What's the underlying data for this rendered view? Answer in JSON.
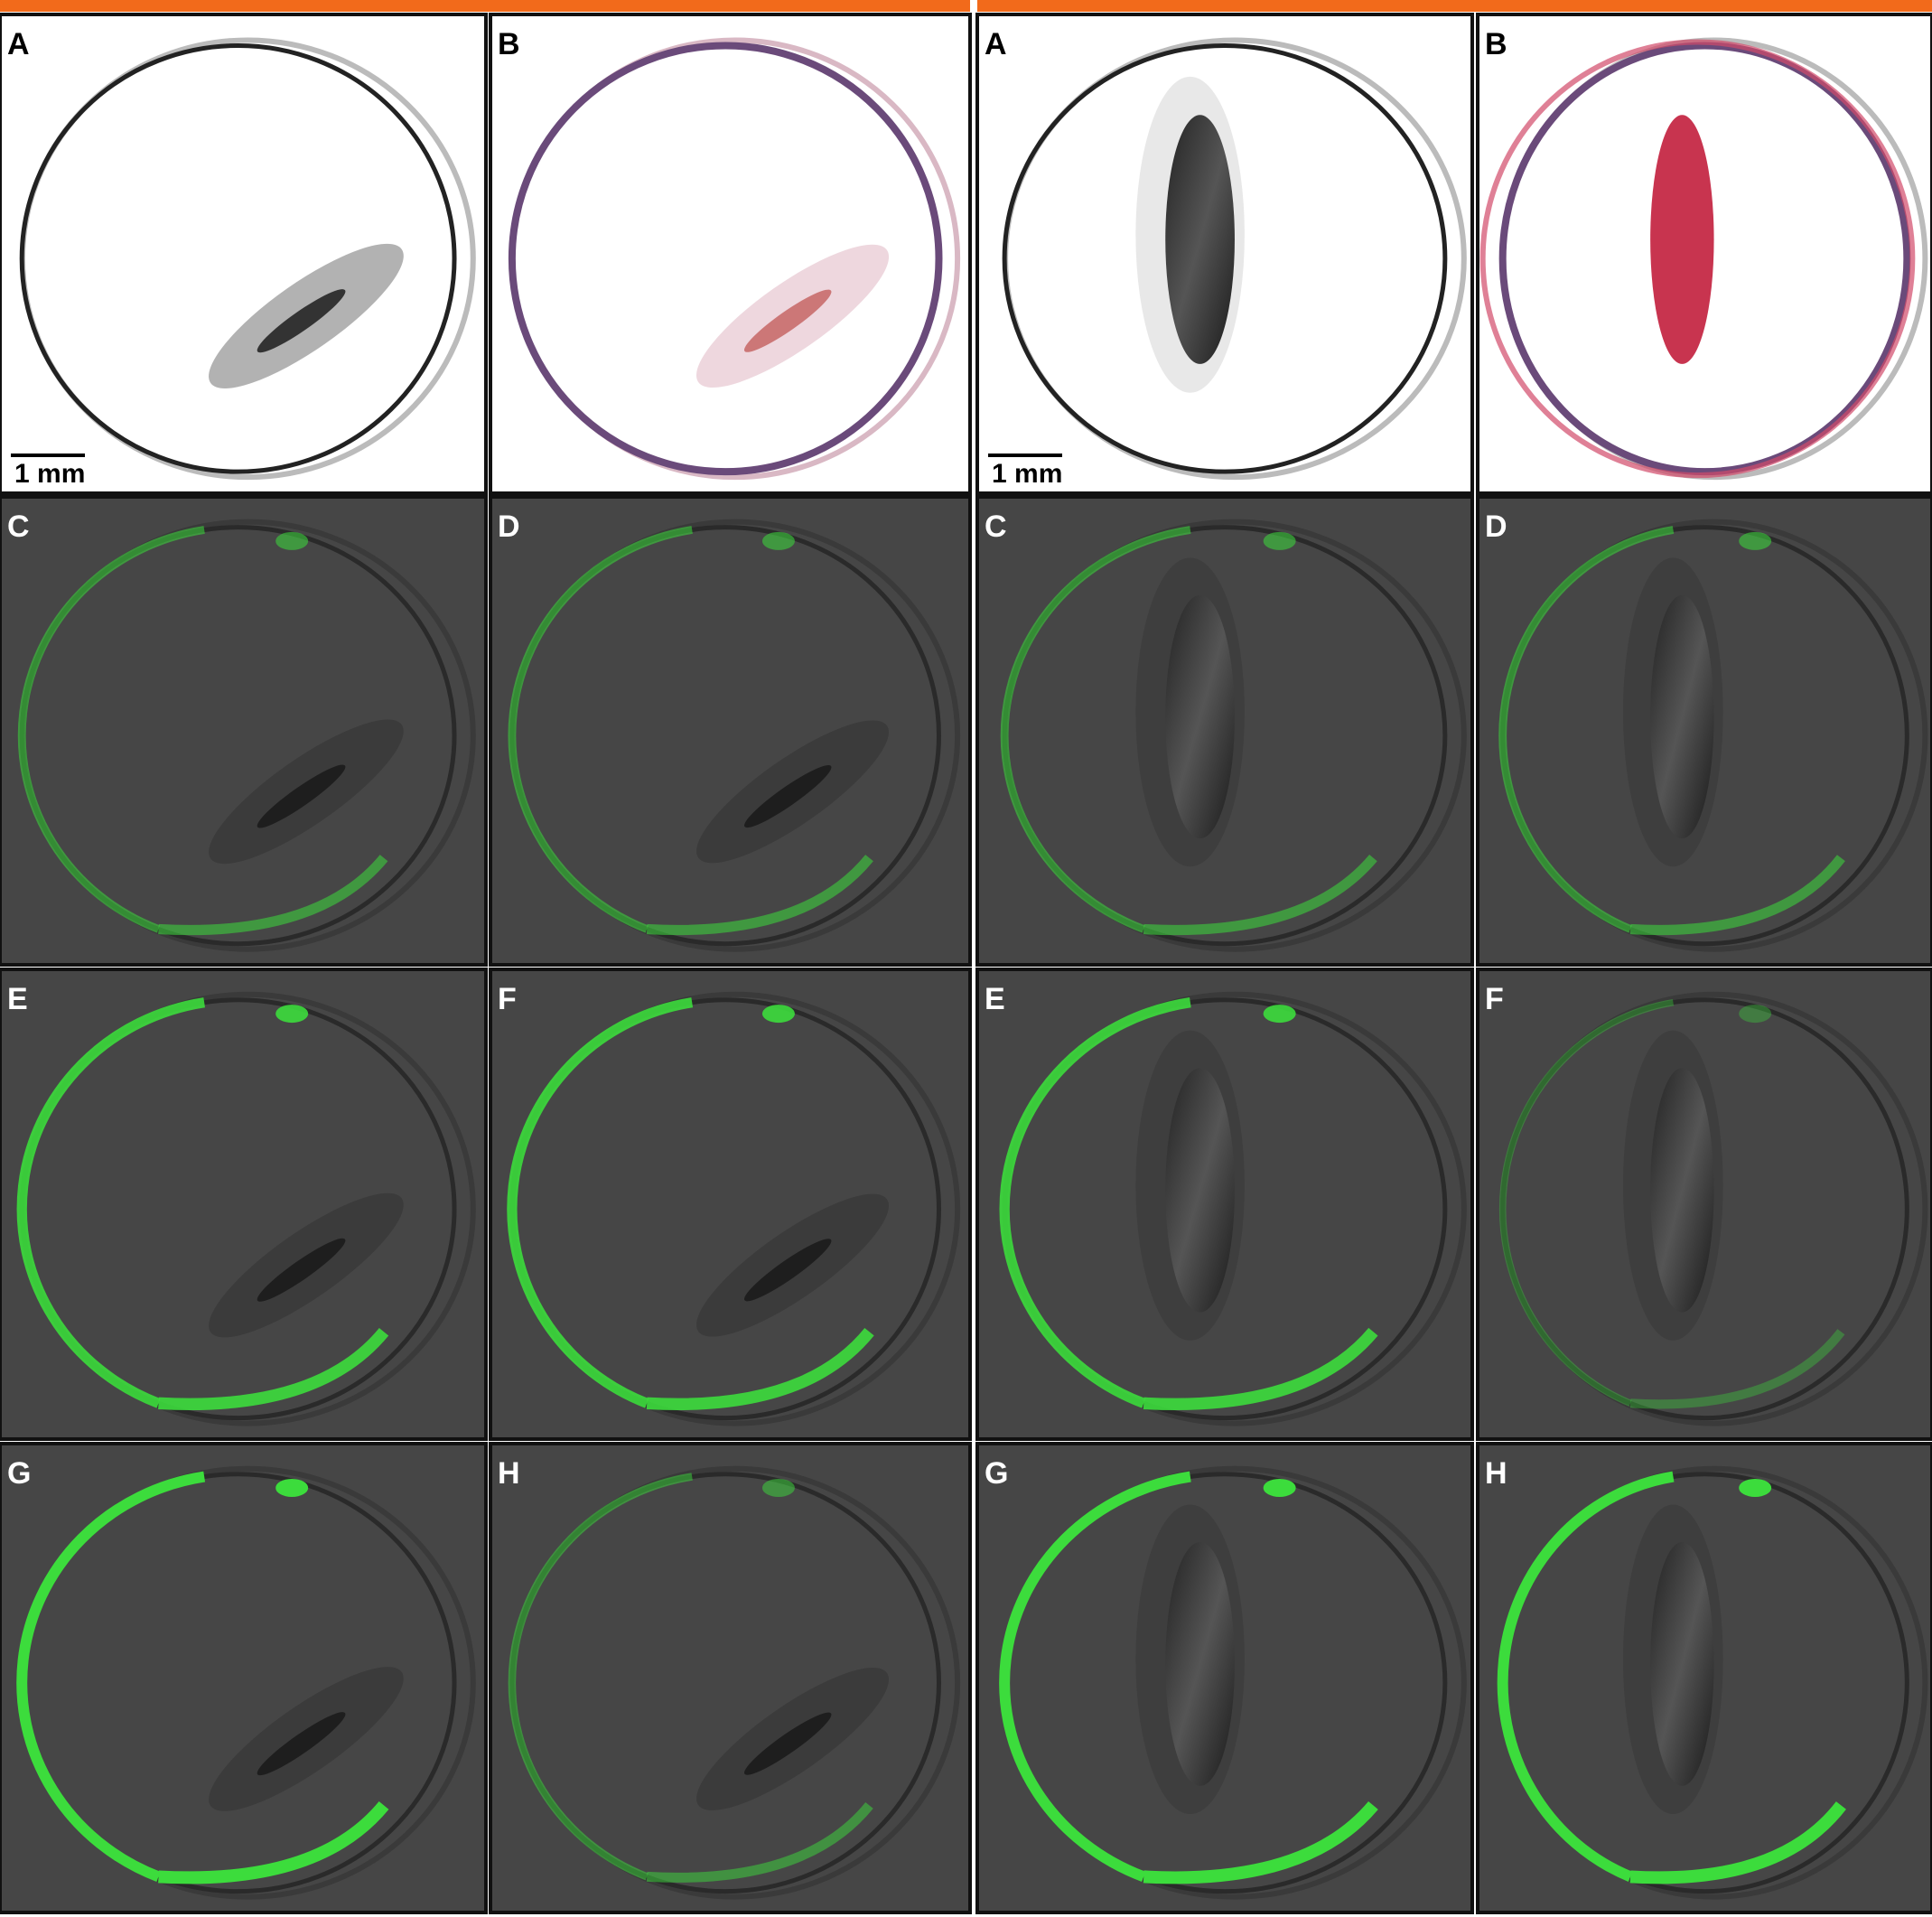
{
  "figures": [
    {
      "panels": [
        {
          "label": "A",
          "scale_bar": "1 mm"
        },
        {
          "label": "B"
        },
        {
          "label": "C"
        },
        {
          "label": "D"
        },
        {
          "label": "E"
        },
        {
          "label": "F"
        },
        {
          "label": "G"
        },
        {
          "label": "H"
        }
      ]
    },
    {
      "panels": [
        {
          "label": "A",
          "scale_bar": "1 mm"
        },
        {
          "label": "B"
        },
        {
          "label": "C"
        },
        {
          "label": "D"
        },
        {
          "label": "E"
        },
        {
          "label": "F"
        },
        {
          "label": "G"
        },
        {
          "label": "H"
        }
      ]
    }
  ]
}
